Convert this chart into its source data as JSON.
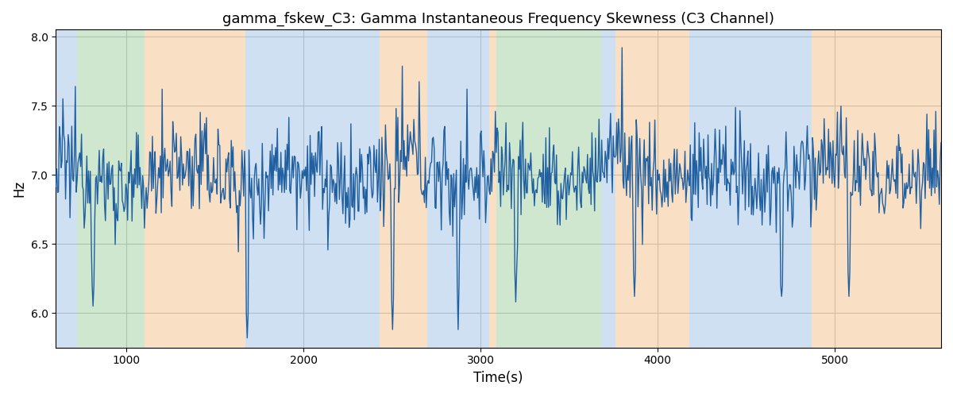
{
  "title": "gamma_fskew_C3: Gamma Instantaneous Frequency Skewness (C3 Channel)",
  "xlabel": "Time(s)",
  "ylabel": "Hz",
  "ylim": [
    5.75,
    8.05
  ],
  "xlim": [
    600,
    5600
  ],
  "line_color": "#2060a0",
  "line_width": 1.0,
  "background_color": "#ffffff",
  "grid_color": "#b0b0b0",
  "bands": [
    {
      "xmin": 600,
      "xmax": 720,
      "color": "#a8c8e8",
      "alpha": 0.55
    },
    {
      "xmin": 720,
      "xmax": 1100,
      "color": "#a8d4a8",
      "alpha": 0.55
    },
    {
      "xmin": 1100,
      "xmax": 1670,
      "color": "#f5c896",
      "alpha": 0.55
    },
    {
      "xmin": 1670,
      "xmax": 1820,
      "color": "#a8c8e8",
      "alpha": 0.55
    },
    {
      "xmin": 1820,
      "xmax": 2430,
      "color": "#a8c8e8",
      "alpha": 0.55
    },
    {
      "xmin": 2430,
      "xmax": 2700,
      "color": "#f5c896",
      "alpha": 0.55
    },
    {
      "xmin": 2700,
      "xmax": 3050,
      "color": "#a8c8e8",
      "alpha": 0.55
    },
    {
      "xmin": 3050,
      "xmax": 3090,
      "color": "#f5c896",
      "alpha": 0.55
    },
    {
      "xmin": 3090,
      "xmax": 3680,
      "color": "#a8d4a8",
      "alpha": 0.55
    },
    {
      "xmin": 3680,
      "xmax": 3760,
      "color": "#a8c8e8",
      "alpha": 0.55
    },
    {
      "xmin": 3760,
      "xmax": 4180,
      "color": "#f5c896",
      "alpha": 0.55
    },
    {
      "xmin": 4180,
      "xmax": 4870,
      "color": "#a8c8e8",
      "alpha": 0.55
    },
    {
      "xmin": 4870,
      "xmax": 5600,
      "color": "#f5c896",
      "alpha": 0.55
    }
  ],
  "xticks": [
    1000,
    2000,
    3000,
    4000,
    5000
  ],
  "yticks": [
    6.0,
    6.5,
    7.0,
    7.5,
    8.0
  ],
  "seed": 12345,
  "n_points": 1000
}
